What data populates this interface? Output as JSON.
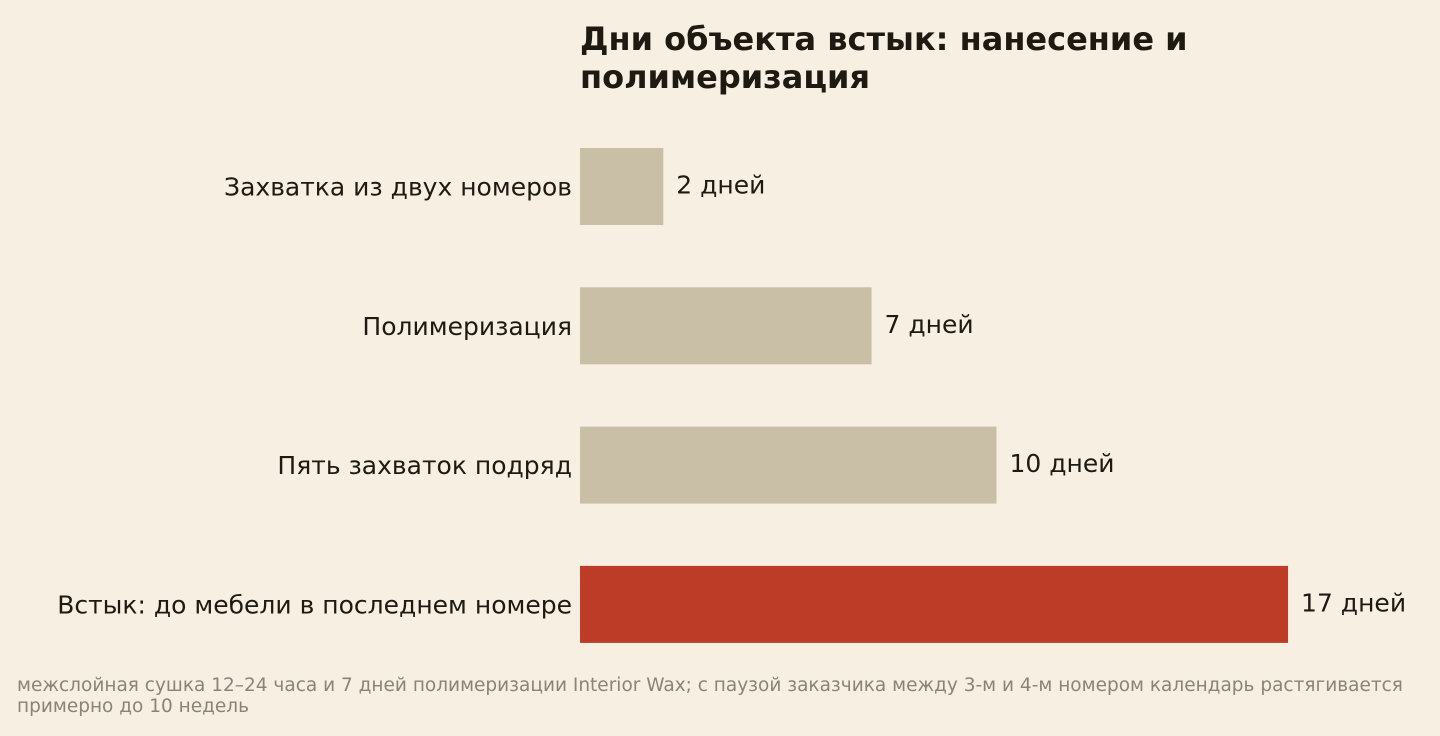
{
  "chart_data": {
    "type": "bar",
    "orientation": "horizontal",
    "title": "Дни объекта встык: нанесение и полимеризация",
    "categories": [
      "Захватка из двух номеров",
      "Полимеризация",
      "Пять захваток подряд",
      "Встык: до мебели в последнем номере"
    ],
    "values": [
      2,
      7,
      10,
      17
    ],
    "data_labels": [
      "2 дней",
      "7 дней",
      "10 дней",
      "17 дней"
    ],
    "highlight_index": 3,
    "xlim": [
      0,
      17
    ],
    "grid": false,
    "legend": "none",
    "footnote": "межслойная сушка 12–24 часа и 7 дней полимеризации Interior Wax; с паузой заказчика между 3-м и 4-м номером календарь растягивается примерно до 10 недель"
  },
  "colors": {
    "background": "#f6efe2",
    "bar": "#c9bfa6",
    "bar_highlight": "#bd3c27",
    "text": "#1e1a12",
    "footnote": "#8a8478"
  }
}
